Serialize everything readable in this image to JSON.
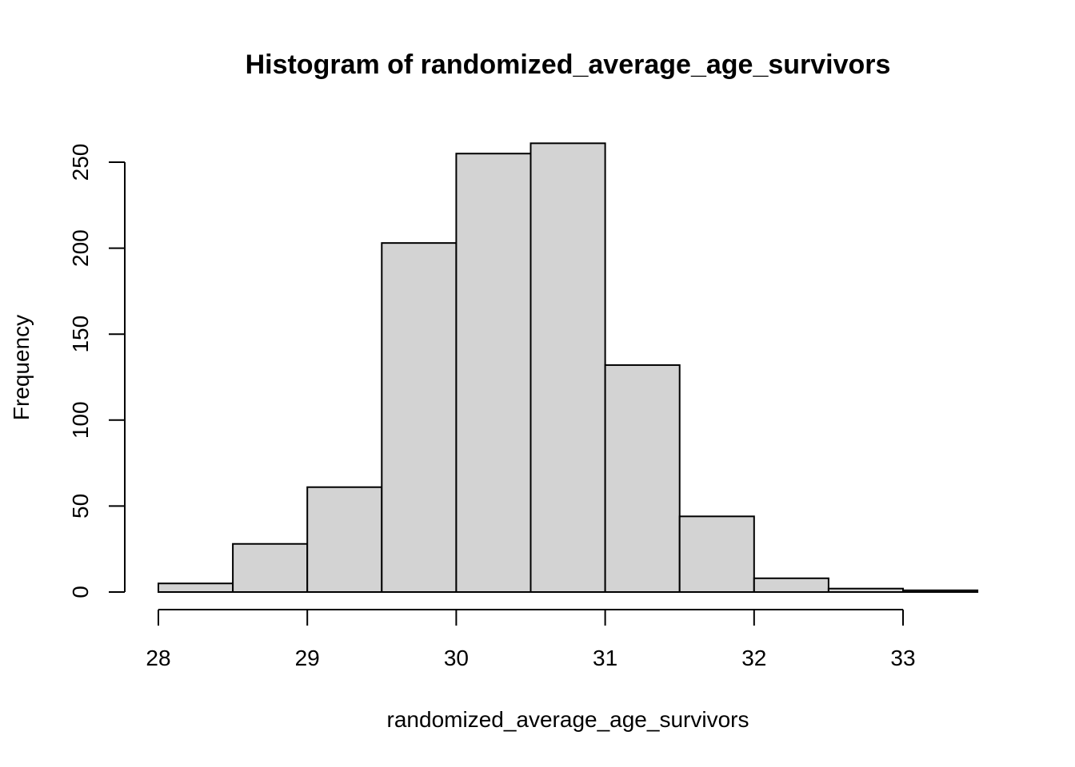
{
  "chart_data": {
    "type": "bar",
    "title": "Histogram of randomized_average_age_survivors",
    "xlabel": "randomized_average_age_survivors",
    "ylabel": "Frequency",
    "bins": [
      {
        "start": 28.0,
        "end": 28.5,
        "count": 5
      },
      {
        "start": 28.5,
        "end": 29.0,
        "count": 28
      },
      {
        "start": 29.0,
        "end": 29.5,
        "count": 61
      },
      {
        "start": 29.5,
        "end": 30.0,
        "count": 203
      },
      {
        "start": 30.0,
        "end": 30.5,
        "count": 255
      },
      {
        "start": 30.5,
        "end": 31.0,
        "count": 261
      },
      {
        "start": 31.0,
        "end": 31.5,
        "count": 132
      },
      {
        "start": 31.5,
        "end": 32.0,
        "count": 44
      },
      {
        "start": 32.0,
        "end": 32.5,
        "count": 8
      },
      {
        "start": 32.5,
        "end": 33.0,
        "count": 2
      },
      {
        "start": 33.0,
        "end": 33.5,
        "count": 1
      }
    ],
    "xlim": [
      28,
      33.5
    ],
    "ylim": [
      0,
      261
    ],
    "x_ticks": [
      28,
      29,
      30,
      31,
      32,
      33
    ],
    "y_ticks": [
      0,
      50,
      100,
      150,
      200,
      250
    ],
    "x_tick_labels": [
      "28",
      "29",
      "30",
      "31",
      "32",
      "33"
    ],
    "y_tick_labels": [
      "0",
      "50",
      "100",
      "150",
      "200",
      "250"
    ],
    "bar_fill": "#d3d3d3",
    "bar_stroke": "#000000",
    "grid": false,
    "legend": "none"
  }
}
